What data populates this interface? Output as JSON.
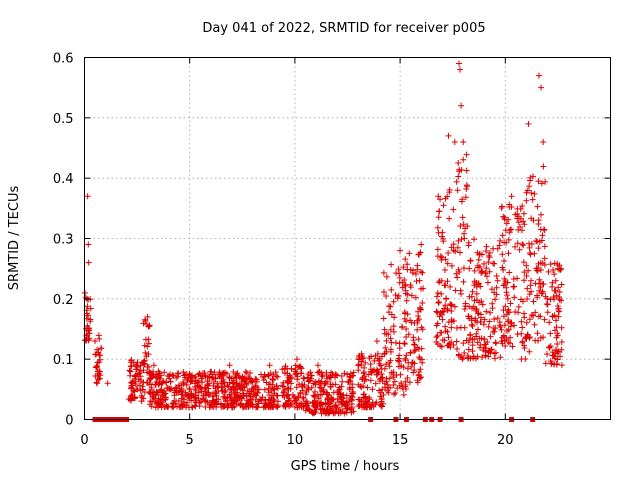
{
  "chart_data": {
    "type": "scatter",
    "title": "Day 041 of 2022, SRMTID for receiver p005",
    "xlabel": "GPS time / hours",
    "ylabel": "SRMTID / TECUs",
    "xlim": [
      0,
      25
    ],
    "ylim": [
      0,
      0.6
    ],
    "xticks": [
      0,
      5,
      10,
      15,
      20
    ],
    "yticks": [
      0,
      0.1,
      0.2,
      0.3,
      0.4,
      0.5,
      0.6
    ],
    "xtick_labels": [
      "0",
      "5",
      "10",
      "15",
      "20"
    ],
    "ytick_labels": [
      "0",
      "0.1",
      "0.2",
      "0.3",
      "0.4",
      "0.5",
      "0.6"
    ],
    "grid": true,
    "marker": "plus",
    "color": "#e00000",
    "series": [
      {
        "name": "SRMTID",
        "segments": [
          {
            "x_start": 0.0,
            "x_end": 0.3,
            "y_low": 0.13,
            "y_high": 0.21,
            "outliers": [
              [
                0.15,
                0.37
              ],
              [
                0.18,
                0.29
              ],
              [
                0.2,
                0.26
              ]
            ]
          },
          {
            "x_start": 0.5,
            "x_end": 0.8,
            "y_low": 0.06,
            "y_high": 0.14,
            "outliers": [
              [
                0.6,
                0.06
              ],
              [
                1.1,
                0.06
              ]
            ]
          },
          {
            "x_start": 2.1,
            "x_end": 2.8,
            "y_low": 0.03,
            "y_high": 0.1,
            "outliers": []
          },
          {
            "x_start": 2.8,
            "x_end": 3.1,
            "y_low": 0.04,
            "y_high": 0.17,
            "outliers": [
              [
                3.0,
                0.17
              ]
            ]
          },
          {
            "x_start": 3.1,
            "x_end": 9.2,
            "y_low": 0.02,
            "y_high": 0.08,
            "outliers": [
              [
                3.3,
                0.09
              ],
              [
                6.9,
                0.09
              ],
              [
                8.8,
                0.09
              ]
            ]
          },
          {
            "x_start": 9.4,
            "x_end": 10.4,
            "y_low": 0.02,
            "y_high": 0.09,
            "outliers": [
              [
                10.1,
                0.1
              ]
            ]
          },
          {
            "x_start": 10.4,
            "x_end": 12.8,
            "y_low": 0.01,
            "y_high": 0.08,
            "outliers": [
              [
                11.1,
                0.09
              ]
            ]
          },
          {
            "x_start": 13.0,
            "x_end": 14.2,
            "y_low": 0.02,
            "y_high": 0.11,
            "outliers": [
              [
                13.9,
                0.13
              ]
            ]
          },
          {
            "x_start": 14.2,
            "x_end": 15.3,
            "y_low": 0.04,
            "y_high": 0.27,
            "outliers": [
              [
                15.0,
                0.28
              ]
            ]
          },
          {
            "x_start": 15.3,
            "x_end": 16.1,
            "y_low": 0.06,
            "y_high": 0.28,
            "outliers": [
              [
                16.0,
                0.29
              ]
            ]
          },
          {
            "x_start": 16.7,
            "x_end": 17.7,
            "y_low": 0.12,
            "y_high": 0.4,
            "outliers": [
              [
                17.3,
                0.47
              ],
              [
                17.6,
                0.46
              ]
            ]
          },
          {
            "x_start": 17.7,
            "x_end": 18.2,
            "y_low": 0.1,
            "y_high": 0.46,
            "outliers": [
              [
                17.8,
                0.59
              ],
              [
                17.85,
                0.58
              ],
              [
                17.9,
                0.52
              ]
            ]
          },
          {
            "x_start": 18.2,
            "x_end": 19.8,
            "y_low": 0.1,
            "y_high": 0.3,
            "outliers": [
              [
                18.0,
                0.46
              ]
            ]
          },
          {
            "x_start": 19.8,
            "x_end": 20.6,
            "y_low": 0.12,
            "y_high": 0.36,
            "outliers": [
              [
                20.3,
                0.37
              ]
            ]
          },
          {
            "x_start": 20.6,
            "x_end": 21.3,
            "y_low": 0.1,
            "y_high": 0.41,
            "outliers": [
              [
                21.1,
                0.49
              ]
            ]
          },
          {
            "x_start": 21.3,
            "x_end": 21.9,
            "y_low": 0.13,
            "y_high": 0.42,
            "outliers": [
              [
                21.6,
                0.57
              ],
              [
                21.7,
                0.55
              ],
              [
                21.8,
                0.46
              ]
            ]
          },
          {
            "x_start": 21.9,
            "x_end": 22.7,
            "y_low": 0.09,
            "y_high": 0.26,
            "outliers": [
              [
                22.4,
                0.23
              ]
            ]
          }
        ],
        "zero_points": [
          0.5,
          0.7,
          0.9,
          1.1,
          1.3,
          1.5,
          1.7,
          1.9,
          2.0,
          13.6,
          14.8,
          15.3,
          16.2,
          16.5,
          16.9,
          17.9,
          20.3,
          21.3
        ]
      }
    ]
  }
}
